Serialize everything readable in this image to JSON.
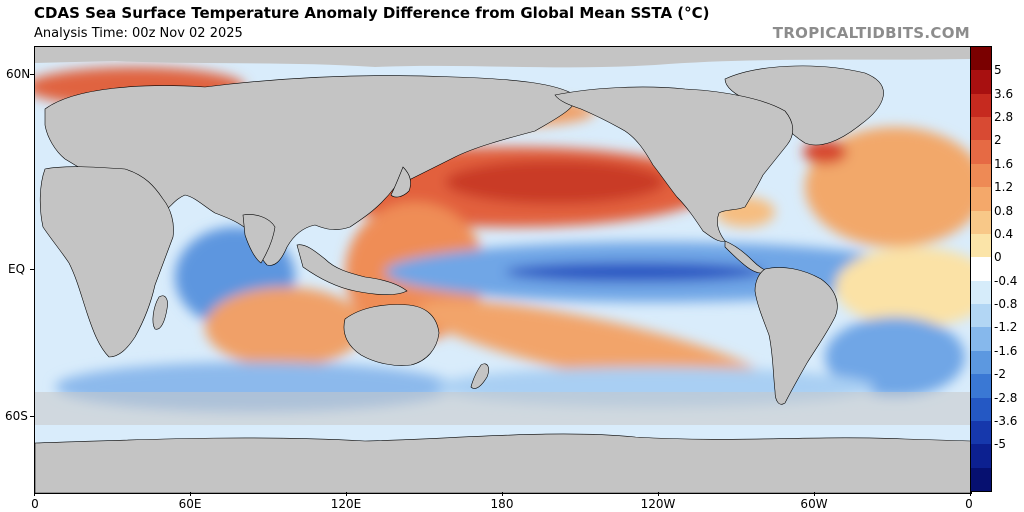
{
  "header": {
    "title": "CDAS Sea Surface Temperature Anomaly Difference from Global Mean SSTA (°C)",
    "subtitle": "Analysis Time: 00z Nov 02 2025",
    "brand": "TROPICALTIDBITS.COM"
  },
  "map": {
    "lat_labels": [
      "60N",
      "EQ",
      "60S"
    ],
    "lon_labels": [
      "0",
      "60E",
      "120E",
      "180",
      "120W",
      "60W",
      "0"
    ]
  },
  "colorbar": {
    "labels": [
      "5",
      "3.6",
      "2.8",
      "2",
      "1.6",
      "1.2",
      "0.8",
      "0.4",
      "0",
      "-0.4",
      "-0.8",
      "-1.2",
      "-1.6",
      "-2",
      "-2.8",
      "-3.6",
      "-5"
    ],
    "colors": [
      "#7a0000",
      "#a81010",
      "#c62a1f",
      "#d84a33",
      "#e66a44",
      "#ee8a55",
      "#f4a86a",
      "#f8c888",
      "#fbe4a8",
      "#ffffff",
      "#d6ecfa",
      "#b2d6f4",
      "#86b8ec",
      "#5c98e0",
      "#3a78d4",
      "#2458c4",
      "#1638ac",
      "#0c2090",
      "#061070"
    ]
  },
  "style": {
    "land": "#c4c4c4",
    "ice": "#c8c8c8"
  }
}
